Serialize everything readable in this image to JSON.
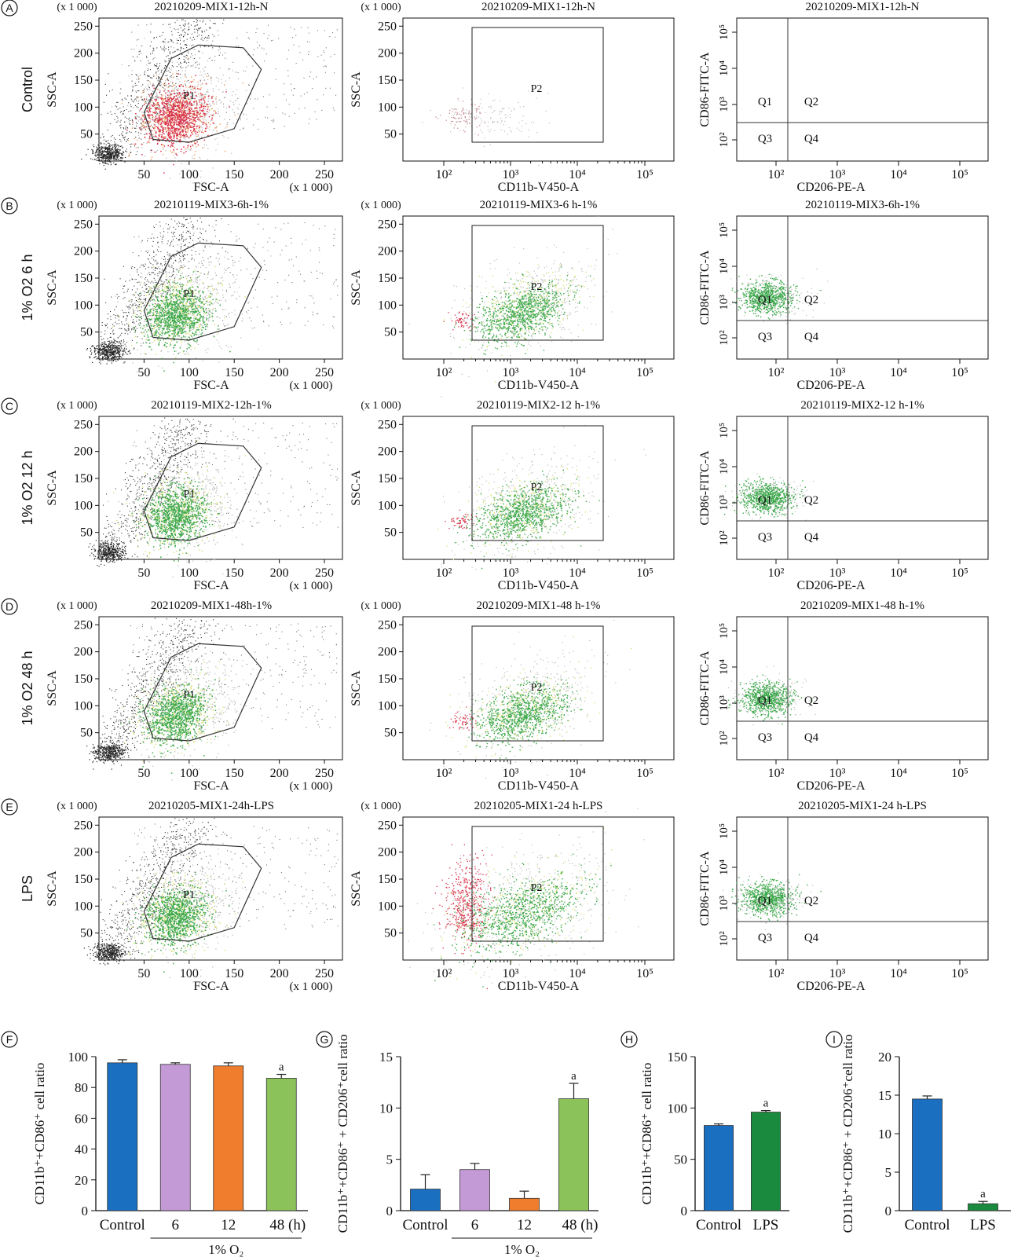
{
  "colors": {
    "black": "#111111",
    "gray": "#9a9a9a",
    "red": "#d8324a",
    "orange": "#f0a060",
    "green": "#3ba84a",
    "yellow": "#d8e070",
    "lightgray": "#bdbdbd",
    "bar_blue": "#1a6fc0",
    "bar_violet": "#c49ad6",
    "bar_orange": "#ef7d2d",
    "bar_green": "#8cc25a",
    "bar_darkgreen": "#1a8a3e"
  },
  "panels": [
    {
      "letter": "A",
      "row_label": "Control"
    },
    {
      "letter": "B",
      "row_label": "1% O2 6 h"
    },
    {
      "letter": "C",
      "row_label": "1% O2 12 h"
    },
    {
      "letter": "D",
      "row_label": "1% O2 48 h"
    },
    {
      "letter": "E",
      "row_label": "LPS"
    }
  ],
  "scale_note": "(x 1 000)",
  "chart_data": [
    {
      "type": "scatter",
      "panel": "A",
      "plot": "FSC-SSC",
      "title": "20210209-MIX1-12h-N",
      "xlabel": "FSC-A",
      "ylabel": "SSC-A",
      "gate": "P1",
      "population": "red",
      "xticks": [
        "50",
        "100",
        "150",
        "200",
        "250"
      ],
      "yticks": [
        "50",
        "100",
        "150",
        "200",
        "250"
      ],
      "xlim": [
        0,
        270
      ],
      "ylim": [
        0,
        265
      ]
    },
    {
      "type": "scatter",
      "panel": "A",
      "plot": "CD11b-SSC",
      "title": "20210209-MIX1-12h-N",
      "xlabel": "CD11b-V450-A",
      "ylabel": "SSC-A",
      "gate": "P2",
      "population": "sparse",
      "xticks": [
        "10²",
        "10³",
        "10⁴",
        "10⁵"
      ],
      "yticks": [
        "50",
        "100",
        "150",
        "200",
        "250"
      ],
      "ylim": [
        0,
        265
      ]
    },
    {
      "type": "scatter",
      "panel": "A",
      "plot": "CD206-CD86",
      "title": "20210209-MIX1-12h-N",
      "xlabel": "CD206-PE-A",
      "ylabel": "CD86-FITC-A",
      "quadrants": [
        "Q1",
        "Q2",
        "Q3",
        "Q4"
      ],
      "population": "none",
      "xticks": [
        "10²",
        "10³",
        "10⁴",
        "10⁵"
      ],
      "yticks": [
        "10²",
        "10³",
        "10⁴",
        "10⁵"
      ]
    },
    {
      "type": "scatter",
      "panel": "B",
      "plot": "FSC-SSC",
      "title": "20210119-MIX3-6h-1%",
      "xlabel": "FSC-A",
      "ylabel": "SSC-A",
      "gate": "P1",
      "population": "green",
      "xticks": [
        "50",
        "100",
        "150",
        "200",
        "250"
      ],
      "yticks": [
        "50",
        "100",
        "150",
        "200",
        "250"
      ],
      "xlim": [
        0,
        270
      ],
      "ylim": [
        0,
        265
      ]
    },
    {
      "type": "scatter",
      "panel": "B",
      "plot": "CD11b-SSC",
      "title": "20210119-MIX3-6 h-1%",
      "xlabel": "CD11b-V450-A",
      "ylabel": "SSC-A",
      "gate": "P2",
      "population": "green",
      "xticks": [
        "10²",
        "10³",
        "10⁴",
        "10⁵"
      ],
      "yticks": [
        "50",
        "100",
        "150",
        "200",
        "250"
      ],
      "ylim": [
        0,
        265
      ]
    },
    {
      "type": "scatter",
      "panel": "B",
      "plot": "CD206-CD86",
      "title": "20210119-MIX3-6h-1%",
      "xlabel": "CD206-PE-A",
      "ylabel": "CD86-FITC-A",
      "quadrants": [
        "Q1",
        "Q2",
        "Q3",
        "Q4"
      ],
      "population": "q1",
      "xticks": [
        "10²",
        "10³",
        "10⁴",
        "10⁵"
      ],
      "yticks": [
        "10²",
        "10³",
        "10⁴",
        "10⁵"
      ]
    },
    {
      "type": "scatter",
      "panel": "C",
      "plot": "FSC-SSC",
      "title": "20210119-MIX2-12h-1%",
      "xlabel": "FSC-A",
      "ylabel": "SSC-A",
      "gate": "P1",
      "population": "green",
      "xticks": [
        "50",
        "100",
        "150",
        "200",
        "250"
      ],
      "yticks": [
        "50",
        "100",
        "150",
        "200",
        "250"
      ],
      "xlim": [
        0,
        270
      ],
      "ylim": [
        0,
        265
      ]
    },
    {
      "type": "scatter",
      "panel": "C",
      "plot": "CD11b-SSC",
      "title": "20210119-MIX2-12 h-1%",
      "xlabel": "CD11b-V450-A",
      "ylabel": "SSC-A",
      "gate": "P2",
      "population": "green",
      "xticks": [
        "10²",
        "10³",
        "10⁴",
        "10⁵"
      ],
      "yticks": [
        "50",
        "100",
        "150",
        "200",
        "250"
      ],
      "ylim": [
        0,
        265
      ]
    },
    {
      "type": "scatter",
      "panel": "C",
      "plot": "CD206-CD86",
      "title": "20210119-MIX2-12 h-1%",
      "xlabel": "CD206-PE-A",
      "ylabel": "CD86-FITC-A",
      "quadrants": [
        "Q1",
        "Q2",
        "Q3",
        "Q4"
      ],
      "population": "q1",
      "xticks": [
        "10²",
        "10³",
        "10⁴",
        "10⁵"
      ],
      "yticks": [
        "10²",
        "10³",
        "10⁴",
        "10⁵"
      ]
    },
    {
      "type": "scatter",
      "panel": "D",
      "plot": "FSC-SSC",
      "title": "20210209-MIX1-48h-1%",
      "xlabel": "FSC-A",
      "ylabel": "SSC-A",
      "gate": "P1",
      "population": "green",
      "xticks": [
        "50",
        "100",
        "150",
        "200",
        "250"
      ],
      "yticks": [
        "50",
        "100",
        "150",
        "200",
        "250"
      ],
      "xlim": [
        0,
        270
      ],
      "ylim": [
        0,
        265
      ]
    },
    {
      "type": "scatter",
      "panel": "D",
      "plot": "CD11b-SSC",
      "title": "20210209-MIX1-48 h-1%",
      "xlabel": "CD11b-V450-A",
      "ylabel": "SSC-A",
      "gate": "P2",
      "population": "green",
      "xticks": [
        "10²",
        "10³",
        "10⁴",
        "10⁵"
      ],
      "yticks": [
        "50",
        "100",
        "150",
        "200",
        "250"
      ],
      "ylim": [
        0,
        265
      ]
    },
    {
      "type": "scatter",
      "panel": "D",
      "plot": "CD206-CD86",
      "title": "20210209-MIX1-48 h-1%",
      "xlabel": "CD206-PE-A",
      "ylabel": "CD86-FITC-A",
      "quadrants": [
        "Q1",
        "Q2",
        "Q3",
        "Q4"
      ],
      "population": "q1",
      "xticks": [
        "10²",
        "10³",
        "10⁴",
        "10⁵"
      ],
      "yticks": [
        "10²",
        "10³",
        "10⁴",
        "10⁵"
      ]
    },
    {
      "type": "scatter",
      "panel": "E",
      "plot": "FSC-SSC",
      "title": "20210205-MIX1-24h-LPS",
      "xlabel": "FSC-A",
      "ylabel": "SSC-A",
      "gate": "P1",
      "population": "green",
      "xticks": [
        "50",
        "100",
        "150",
        "200",
        "250"
      ],
      "yticks": [
        "50",
        "100",
        "150",
        "200",
        "250"
      ],
      "xlim": [
        0,
        270
      ],
      "ylim": [
        0,
        265
      ]
    },
    {
      "type": "scatter",
      "panel": "E",
      "plot": "CD11b-SSC",
      "title": "20210205-MIX1-24 h-LPS",
      "xlabel": "CD11b-V450-A",
      "ylabel": "SSC-A",
      "gate": "P2",
      "population": "green",
      "xticks": [
        "10²",
        "10³",
        "10⁴",
        "10⁵"
      ],
      "yticks": [
        "50",
        "100",
        "150",
        "200",
        "250"
      ],
      "ylim": [
        0,
        265
      ]
    },
    {
      "type": "scatter",
      "panel": "E",
      "plot": "CD206-CD86",
      "title": "20210205-MIX1-24 h-LPS",
      "xlabel": "CD206-PE-A",
      "ylabel": "CD86-FITC-A",
      "quadrants": [
        "Q1",
        "Q2",
        "Q3",
        "Q4"
      ],
      "population": "q1",
      "xticks": [
        "10²",
        "10³",
        "10⁴",
        "10⁵"
      ],
      "yticks": [
        "10²",
        "10³",
        "10⁴",
        "10⁵"
      ]
    },
    {
      "type": "bar",
      "panel": "F",
      "ylabel": "CD11b⁺+CD86⁺ cell ratio",
      "ylim": [
        0,
        100
      ],
      "yticks": [
        "0",
        "20",
        "40",
        "60",
        "80",
        "100"
      ],
      "categories": [
        "Control",
        "6",
        "12",
        "48 (h)"
      ],
      "values": [
        96,
        95,
        94,
        86
      ],
      "errors": [
        2,
        1,
        2,
        2.5
      ],
      "colors": [
        "#1a6fc0",
        "#c49ad6",
        "#ef7d2d",
        "#8cc25a"
      ],
      "significance": [
        "",
        "",
        "",
        "a"
      ],
      "group_label": "1% O₂"
    },
    {
      "type": "bar",
      "panel": "G",
      "ylabel": "CD11b⁺+CD86⁺ + CD206⁺cell ratio",
      "ylim": [
        0,
        15
      ],
      "yticks": [
        "0",
        "5",
        "10",
        "15"
      ],
      "categories": [
        "Control",
        "6",
        "12",
        "48 (h)"
      ],
      "values": [
        2.1,
        4.0,
        1.2,
        10.9
      ],
      "errors": [
        1.4,
        0.6,
        0.7,
        1.5
      ],
      "colors": [
        "#1a6fc0",
        "#c49ad6",
        "#ef7d2d",
        "#8cc25a"
      ],
      "significance": [
        "",
        "",
        "",
        "a"
      ],
      "group_label": "1% O₂"
    },
    {
      "type": "bar",
      "panel": "H",
      "ylabel": "CD11b⁺+CD86⁺ cell ratio",
      "ylim": [
        0,
        150
      ],
      "yticks": [
        "0",
        "50",
        "100",
        "150"
      ],
      "categories": [
        "Control",
        "LPS"
      ],
      "values": [
        83,
        96
      ],
      "errors": [
        1.5,
        1.5
      ],
      "colors": [
        "#1a6fc0",
        "#1a8a3e"
      ],
      "significance": [
        "",
        "a"
      ]
    },
    {
      "type": "bar",
      "panel": "I",
      "ylabel": "CD11b⁺+CD86⁺ + CD206⁺cell ratio",
      "ylim": [
        0,
        20
      ],
      "yticks": [
        "0",
        "5",
        "10",
        "15",
        "20"
      ],
      "categories": [
        "Control",
        "LPS"
      ],
      "values": [
        14.5,
        0.9
      ],
      "errors": [
        0.4,
        0.3
      ],
      "colors": [
        "#1a6fc0",
        "#1a8a3e"
      ],
      "significance": [
        "",
        "a"
      ]
    }
  ]
}
